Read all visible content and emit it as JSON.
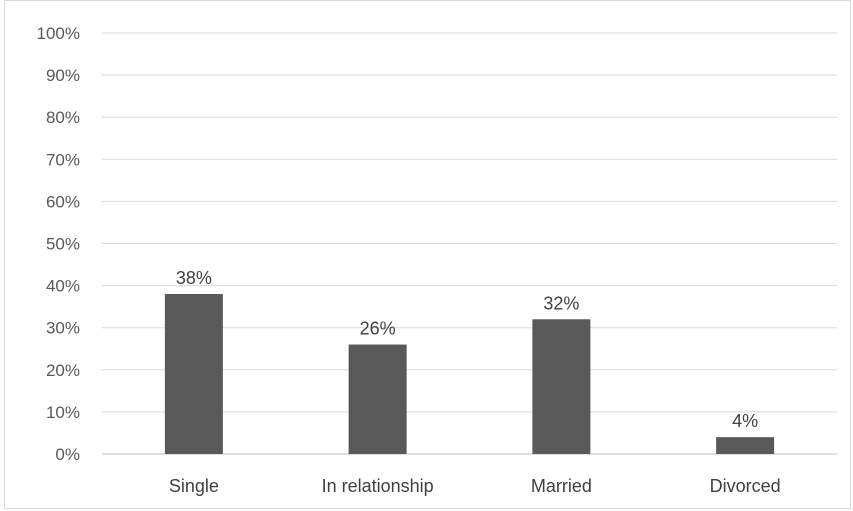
{
  "chart_data": {
    "type": "bar",
    "title": "",
    "xlabel": "",
    "ylabel": "",
    "categories": [
      "Single",
      "In relationship",
      "Married",
      "Divorced"
    ],
    "values": [
      38,
      26,
      32,
      4
    ],
    "data_labels": [
      "38%",
      "26%",
      "32%",
      "4%"
    ],
    "ylim": [
      0,
      100
    ],
    "y_ticks": [
      "0%",
      "10%",
      "20%",
      "30%",
      "40%",
      "50%",
      "60%",
      "70%",
      "80%",
      "90%",
      "100%"
    ],
    "grid": true,
    "legend": "none",
    "colors": {
      "bar": "#595959",
      "grid": "#d9d9d9",
      "axis": "#bfbfbf"
    }
  }
}
